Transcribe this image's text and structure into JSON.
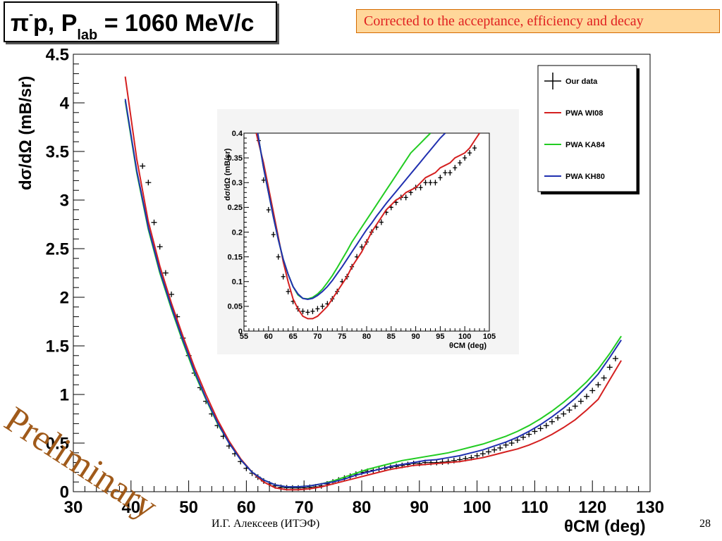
{
  "title": {
    "prefix": "π",
    "sup": "-",
    "mid": "p, P",
    "sub": "lab",
    "suffix": " = 1060 MeV/c"
  },
  "note": "Corrected to the acceptance, efficiency and decay",
  "watermark": "Preliminary",
  "footer": {
    "author": "И.Г. Алексеев (ИТЭФ)",
    "page": "28"
  },
  "colors": {
    "wi08": "#d42020",
    "ka84": "#22cc22",
    "kh80": "#2030b0",
    "data": "#000000",
    "note_bg": "#ffd79a",
    "note_text": "#e02020",
    "watermark": "#a05a1a"
  },
  "chart_data": [
    {
      "type": "line",
      "xlabel": "θCM (deg)",
      "ylabel": "dσ/dΩ (mB/sr)",
      "xlim": [
        30,
        130
      ],
      "ylim": [
        0,
        4.5
      ],
      "xticks": [
        "30",
        "40",
        "50",
        "60",
        "70",
        "80",
        "90",
        "100",
        "110",
        "120",
        "130"
      ],
      "yticks": [
        "0",
        "0.5",
        "1",
        "1.5",
        "2",
        "2.5",
        "3",
        "3.5",
        "4",
        "4.5"
      ],
      "legend_position": "top-right",
      "legend": [
        "Our data",
        "PWA WI08",
        "PWA KA84",
        "PWA KH80"
      ],
      "series": [
        {
          "name": "Our data",
          "kind": "points",
          "x": [
            42,
            43,
            44,
            45,
            46,
            47,
            48,
            49,
            50,
            51,
            52,
            53,
            54,
            55,
            56,
            57,
            58,
            59,
            60,
            61,
            62,
            63,
            64,
            65,
            66,
            67,
            68,
            69,
            70,
            71,
            72,
            73,
            74,
            75,
            76,
            77,
            78,
            79,
            80,
            81,
            82,
            83,
            84,
            85,
            86,
            87,
            88,
            89,
            90,
            91,
            92,
            93,
            94,
            95,
            96,
            97,
            98,
            99,
            100,
            101,
            102,
            103,
            104,
            105,
            106,
            107,
            108,
            109,
            110,
            111,
            112,
            113,
            114,
            115,
            116,
            117,
            118,
            119,
            120,
            121,
            122,
            123,
            124
          ],
          "y": [
            3.35,
            3.18,
            2.77,
            2.52,
            2.25,
            2.03,
            1.8,
            1.58,
            1.4,
            1.22,
            1.07,
            0.93,
            0.8,
            0.68,
            0.57,
            0.47,
            0.39,
            0.31,
            0.24,
            0.19,
            0.15,
            0.11,
            0.08,
            0.06,
            0.045,
            0.04,
            0.038,
            0.038,
            0.04,
            0.045,
            0.05,
            0.06,
            0.08,
            0.1,
            0.12,
            0.14,
            0.16,
            0.18,
            0.2,
            0.21,
            0.22,
            0.23,
            0.24,
            0.25,
            0.26,
            0.27,
            0.28,
            0.29,
            0.29,
            0.3,
            0.3,
            0.3,
            0.305,
            0.31,
            0.32,
            0.33,
            0.34,
            0.35,
            0.37,
            0.39,
            0.41,
            0.43,
            0.45,
            0.48,
            0.5,
            0.53,
            0.56,
            0.59,
            0.62,
            0.65,
            0.68,
            0.72,
            0.76,
            0.8,
            0.84,
            0.88,
            0.93,
            0.98,
            1.04,
            1.1,
            1.17,
            1.28,
            1.37
          ]
        },
        {
          "name": "PWA WI08",
          "kind": "line",
          "x": [
            39,
            41,
            43,
            45,
            47,
            49,
            51,
            53,
            55,
            57,
            59,
            61,
            63,
            65,
            67,
            69,
            71,
            73,
            75,
            77,
            79,
            81,
            83,
            85,
            87,
            89,
            91,
            93,
            95,
            97,
            99,
            101,
            103,
            105,
            107,
            109,
            111,
            113,
            115,
            117,
            119,
            121,
            123,
            125
          ],
          "y": [
            4.27,
            3.42,
            2.78,
            2.32,
            1.94,
            1.6,
            1.28,
            1.0,
            0.74,
            0.52,
            0.34,
            0.2,
            0.1,
            0.04,
            0.02,
            0.02,
            0.03,
            0.05,
            0.08,
            0.11,
            0.14,
            0.17,
            0.2,
            0.23,
            0.25,
            0.27,
            0.28,
            0.29,
            0.3,
            0.31,
            0.33,
            0.35,
            0.38,
            0.41,
            0.44,
            0.48,
            0.53,
            0.59,
            0.66,
            0.74,
            0.84,
            0.95,
            1.15,
            1.35
          ]
        },
        {
          "name": "PWA KA84",
          "kind": "line",
          "x": [
            39,
            41,
            43,
            45,
            47,
            49,
            51,
            53,
            55,
            57,
            59,
            61,
            63,
            65,
            67,
            69,
            71,
            73,
            75,
            77,
            79,
            81,
            83,
            85,
            87,
            89,
            91,
            93,
            95,
            97,
            99,
            101,
            103,
            105,
            107,
            109,
            111,
            113,
            115,
            117,
            119,
            121,
            123,
            125
          ],
          "y": [
            4.02,
            3.28,
            2.7,
            2.25,
            1.88,
            1.54,
            1.22,
            0.95,
            0.7,
            0.5,
            0.33,
            0.2,
            0.12,
            0.07,
            0.05,
            0.05,
            0.06,
            0.08,
            0.11,
            0.15,
            0.19,
            0.23,
            0.26,
            0.29,
            0.32,
            0.34,
            0.36,
            0.38,
            0.4,
            0.43,
            0.46,
            0.49,
            0.53,
            0.57,
            0.62,
            0.68,
            0.75,
            0.83,
            0.92,
            1.02,
            1.13,
            1.26,
            1.42,
            1.6
          ]
        },
        {
          "name": "PWA KH80",
          "kind": "line",
          "x": [
            39,
            41,
            43,
            45,
            47,
            49,
            51,
            53,
            55,
            57,
            59,
            61,
            63,
            65,
            67,
            69,
            71,
            73,
            75,
            77,
            79,
            81,
            83,
            85,
            87,
            89,
            91,
            93,
            95,
            97,
            99,
            101,
            103,
            105,
            107,
            109,
            111,
            113,
            115,
            117,
            119,
            121,
            123,
            125
          ],
          "y": [
            4.04,
            3.3,
            2.72,
            2.27,
            1.9,
            1.56,
            1.24,
            0.96,
            0.71,
            0.5,
            0.33,
            0.2,
            0.12,
            0.07,
            0.05,
            0.05,
            0.06,
            0.08,
            0.1,
            0.13,
            0.17,
            0.2,
            0.23,
            0.26,
            0.28,
            0.3,
            0.32,
            0.33,
            0.35,
            0.37,
            0.4,
            0.43,
            0.47,
            0.51,
            0.56,
            0.62,
            0.69,
            0.77,
            0.86,
            0.96,
            1.08,
            1.21,
            1.38,
            1.56
          ]
        }
      ]
    },
    {
      "type": "line",
      "xlabel": "θCM (deg)",
      "ylabel": "dσ/dΩ (mB/sr)",
      "xlim": [
        55,
        105
      ],
      "ylim": [
        0,
        0.4
      ],
      "xticks": [
        "55",
        "60",
        "65",
        "70",
        "75",
        "80",
        "85",
        "90",
        "95",
        "100",
        "105"
      ],
      "yticks": [
        "0",
        "0.05",
        "0.1",
        "0.15",
        "0.2",
        "0.25",
        "0.3",
        "0.35",
        "0.4"
      ],
      "series": [
        {
          "name": "Our data",
          "kind": "points",
          "x": [
            58,
            59,
            60,
            61,
            62,
            63,
            64,
            65,
            66,
            67,
            68,
            69,
            70,
            71,
            72,
            73,
            74,
            75,
            76,
            77,
            78,
            79,
            80,
            81,
            82,
            83,
            84,
            85,
            86,
            87,
            88,
            89,
            90,
            91,
            92,
            93,
            94,
            95,
            96,
            97,
            98,
            99,
            100,
            101,
            102
          ],
          "y": [
            0.385,
            0.305,
            0.245,
            0.195,
            0.15,
            0.11,
            0.08,
            0.06,
            0.045,
            0.04,
            0.038,
            0.04,
            0.045,
            0.05,
            0.055,
            0.065,
            0.08,
            0.1,
            0.11,
            0.13,
            0.15,
            0.17,
            0.18,
            0.2,
            0.21,
            0.22,
            0.24,
            0.25,
            0.26,
            0.27,
            0.27,
            0.28,
            0.29,
            0.29,
            0.3,
            0.3,
            0.3,
            0.31,
            0.32,
            0.32,
            0.33,
            0.34,
            0.35,
            0.36,
            0.37
          ]
        },
        {
          "name": "PWA WI08",
          "kind": "line",
          "x": [
            57.5,
            59,
            60,
            61,
            62,
            63,
            64,
            65,
            66,
            67,
            68,
            69,
            70,
            71,
            72,
            73,
            74,
            75,
            76,
            77,
            78,
            79,
            80,
            81,
            82,
            83,
            84,
            85,
            86,
            87,
            88,
            89,
            90,
            91,
            92,
            93,
            94,
            95,
            96,
            97,
            98,
            99,
            100,
            101,
            102,
            103
          ],
          "y": [
            0.4,
            0.34,
            0.29,
            0.24,
            0.19,
            0.14,
            0.1,
            0.065,
            0.045,
            0.03,
            0.025,
            0.025,
            0.03,
            0.04,
            0.05,
            0.065,
            0.08,
            0.095,
            0.11,
            0.13,
            0.145,
            0.16,
            0.18,
            0.2,
            0.215,
            0.23,
            0.245,
            0.255,
            0.265,
            0.27,
            0.28,
            0.285,
            0.29,
            0.3,
            0.31,
            0.315,
            0.32,
            0.33,
            0.335,
            0.34,
            0.35,
            0.355,
            0.36,
            0.37,
            0.385,
            0.4
          ]
        },
        {
          "name": "PWA KA84",
          "kind": "line",
          "x": [
            57.8,
            59,
            60,
            61,
            62,
            63,
            64,
            65,
            66,
            67,
            68,
            69,
            70,
            71,
            72,
            73,
            74,
            75,
            76,
            77,
            78,
            79,
            80,
            81,
            82,
            83,
            84,
            85,
            86,
            87,
            88,
            89,
            90,
            91,
            92,
            93
          ],
          "y": [
            0.4,
            0.33,
            0.28,
            0.23,
            0.185,
            0.145,
            0.115,
            0.09,
            0.073,
            0.066,
            0.065,
            0.068,
            0.075,
            0.085,
            0.098,
            0.112,
            0.128,
            0.145,
            0.162,
            0.18,
            0.195,
            0.21,
            0.225,
            0.24,
            0.255,
            0.27,
            0.285,
            0.3,
            0.315,
            0.33,
            0.345,
            0.36,
            0.37,
            0.38,
            0.39,
            0.4
          ]
        },
        {
          "name": "PWA KH80",
          "kind": "line",
          "x": [
            57.8,
            59,
            60,
            61,
            62,
            63,
            64,
            65,
            66,
            67,
            68,
            69,
            70,
            71,
            72,
            73,
            74,
            75,
            76,
            77,
            78,
            79,
            80,
            81,
            82,
            83,
            84,
            85,
            86,
            87,
            88,
            89,
            90,
            91,
            92,
            93,
            94,
            95,
            96
          ],
          "y": [
            0.4,
            0.33,
            0.28,
            0.23,
            0.185,
            0.145,
            0.115,
            0.09,
            0.075,
            0.066,
            0.064,
            0.066,
            0.072,
            0.08,
            0.09,
            0.102,
            0.116,
            0.13,
            0.145,
            0.16,
            0.175,
            0.19,
            0.205,
            0.218,
            0.232,
            0.245,
            0.258,
            0.27,
            0.282,
            0.294,
            0.306,
            0.318,
            0.33,
            0.342,
            0.354,
            0.366,
            0.378,
            0.39,
            0.4
          ]
        }
      ]
    }
  ]
}
